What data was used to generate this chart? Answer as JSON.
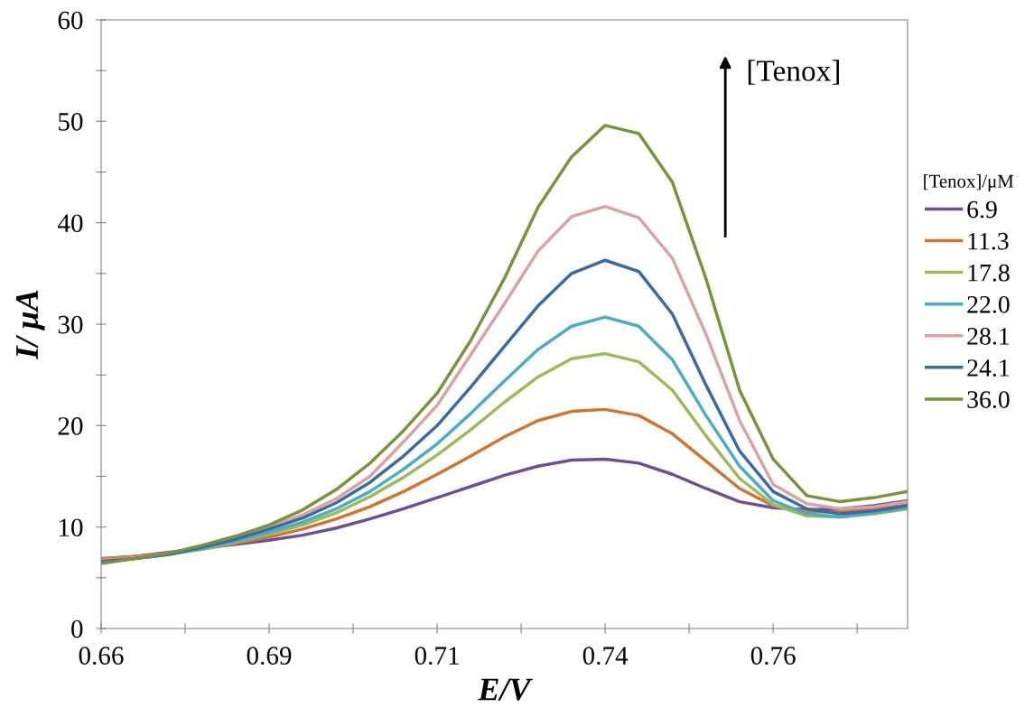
{
  "chart_data": {
    "type": "line",
    "xlabel": "E/V",
    "ylabel": "I/ μA",
    "legend_title": "[Tenox]/μM",
    "legend": "right",
    "grid": false,
    "marker": "none",
    "line_style": "solid",
    "x": [
      0.66,
      0.665,
      0.67,
      0.675,
      0.68,
      0.685,
      0.69,
      0.695,
      0.7,
      0.705,
      0.71,
      0.715,
      0.72,
      0.725,
      0.73,
      0.735,
      0.74,
      0.745,
      0.75,
      0.755,
      0.76,
      0.765,
      0.77,
      0.775,
      0.78
    ],
    "xlim": [
      0.66,
      0.78
    ],
    "xticks": [
      0.66,
      {
        "value": 0.6725,
        "label": null
      },
      {
        "value": 0.685,
        "label": "0.69"
      },
      {
        "value": 0.6975,
        "label": null
      },
      0.71,
      {
        "value": 0.7225,
        "label": null
      },
      {
        "value": 0.735,
        "label": "0.74"
      },
      {
        "value": 0.7475,
        "label": null
      },
      0.76,
      {
        "value": 0.7725,
        "label": null
      }
    ],
    "ylim": [
      0,
      60
    ],
    "yticks": [
      0,
      {
        "value": 5,
        "label": null
      },
      10,
      {
        "value": 15,
        "label": null
      },
      20,
      {
        "value": 25,
        "label": null
      },
      30,
      {
        "value": 35,
        "label": null
      },
      40,
      {
        "value": 45,
        "label": null
      },
      50,
      {
        "value": 55,
        "label": null
      },
      60
    ],
    "series": [
      {
        "name": "6.9",
        "color": "#6b5096",
        "values": [
          6.8,
          7.1,
          7.5,
          7.9,
          8.3,
          8.7,
          9.2,
          9.9,
          10.8,
          11.8,
          12.9,
          14.0,
          15.1,
          16.0,
          16.6,
          16.7,
          16.3,
          15.2,
          13.8,
          12.5,
          11.9,
          11.7,
          11.8,
          12.1,
          12.6
        ]
      },
      {
        "name": "11.3",
        "color": "#d07530",
        "values": [
          6.9,
          7.1,
          7.4,
          7.8,
          8.4,
          9.0,
          9.8,
          10.8,
          12.0,
          13.5,
          15.2,
          17.0,
          18.9,
          20.5,
          21.4,
          21.6,
          21.0,
          19.2,
          16.5,
          13.8,
          12.1,
          11.5,
          11.5,
          11.8,
          12.2
        ]
      },
      {
        "name": "17.8",
        "color": "#9bbb59",
        "values": [
          6.5,
          6.9,
          7.3,
          7.8,
          8.5,
          9.3,
          10.2,
          11.4,
          13.0,
          14.9,
          17.1,
          19.6,
          22.3,
          24.8,
          26.6,
          27.1,
          26.3,
          23.5,
          19.0,
          14.8,
          12.2,
          11.1,
          11.0,
          11.3,
          11.8
        ]
      },
      {
        "name": "22.0",
        "color": "#4bacc6",
        "values": [
          6.6,
          6.9,
          7.3,
          7.9,
          8.6,
          9.5,
          10.5,
          11.8,
          13.5,
          15.7,
          18.2,
          21.2,
          24.4,
          27.5,
          29.8,
          30.7,
          29.8,
          26.5,
          21.0,
          16.0,
          12.6,
          11.3,
          11.0,
          11.4,
          11.9
        ]
      },
      {
        "name": "28.1",
        "color": "#d9a3a3",
        "values": [
          6.7,
          7.0,
          7.4,
          8.1,
          9.0,
          10.0,
          11.2,
          12.8,
          15.0,
          18.4,
          22.0,
          27.0,
          32.0,
          37.2,
          40.6,
          41.6,
          40.5,
          36.5,
          29.0,
          20.5,
          14.2,
          12.3,
          11.8,
          12.0,
          12.5
        ]
      },
      {
        "name": "24.1",
        "color": "#3c6aa0",
        "values": [
          6.6,
          6.9,
          7.3,
          8.0,
          8.8,
          9.8,
          10.9,
          12.4,
          14.4,
          17.0,
          20.0,
          23.8,
          27.8,
          31.8,
          35.0,
          36.3,
          35.2,
          31.0,
          24.0,
          17.5,
          13.5,
          11.8,
          11.3,
          11.6,
          12.1
        ]
      },
      {
        "name": "36.0",
        "color": "#77933c",
        "values": [
          6.4,
          6.9,
          7.4,
          8.2,
          9.1,
          10.2,
          11.7,
          13.7,
          16.3,
          19.5,
          23.2,
          28.4,
          34.5,
          41.5,
          46.5,
          49.6,
          48.8,
          44.0,
          34.5,
          23.5,
          16.7,
          13.1,
          12.5,
          12.9,
          13.5
        ]
      }
    ],
    "annotations": [
      "[Tenox]"
    ]
  }
}
